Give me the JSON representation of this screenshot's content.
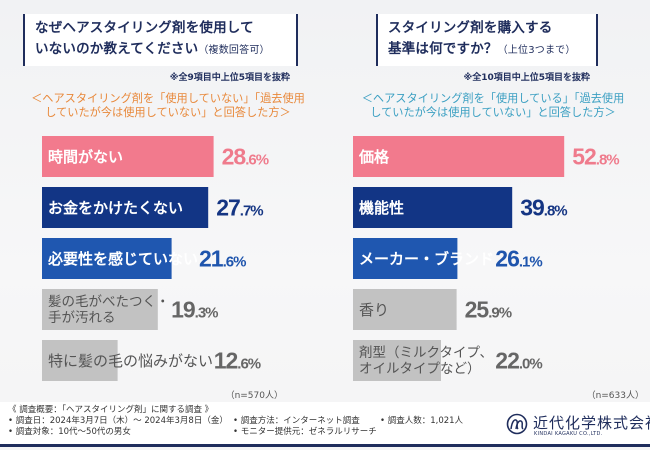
{
  "colors": {
    "pink": "#f27a8d",
    "navy": "#123585",
    "blue": "#1f57b0",
    "gray": "#c2c2c2",
    "pink_text": "#ef7b8c",
    "navy_text": "#153583",
    "blue_text": "#1f55ad",
    "gray_text": "#666666",
    "title": "#1f2d5c",
    "left_target": "#e8883a",
    "right_target": "#3a9fc2"
  },
  "left": {
    "question_line1": "なぜヘアスタイリング剤を使用して",
    "question_line2": "いないのか教えてください",
    "question_note": "（複数回答可）",
    "extract_note": "※全9項目中上位5項目を抜粋",
    "target_line1": "＜ヘアスタイリング剤を「使用していない」「過去使用",
    "target_line2": "していたが今は使用していない」と回答した方＞",
    "n_label": "（n=570人）"
  },
  "right": {
    "question_line1": "スタイリング剤を購入する",
    "question_line2": "基準は何ですか？",
    "question_note": "（上位3つまで）",
    "extract_note": "※全10項目中上位5項目を抜粋",
    "target_line1": "＜ヘアスタイリング剤を「使用している」「過去使用",
    "target_line2": "していたが今は使用していない」と回答した方＞",
    "n_label": "（n=633人）"
  },
  "chart_data": [
    {
      "type": "bar",
      "orientation": "horizontal",
      "title": "なぜヘアスタイリング剤を使用していないのか教えてください（複数回答可）",
      "unit": "%",
      "categories": [
        "時間がない",
        "お金をかけたくない",
        "必要性を感じていない",
        "髪の毛がべたつく・手が汚れる",
        "特に髪の毛の悩みがない"
      ],
      "category_lines": [
        [
          "時間がない"
        ],
        [
          "お金をかけたくない"
        ],
        [
          "必要性を感じていない"
        ],
        [
          "髪の毛がべたつく・",
          "手が汚れる"
        ],
        [
          "特に髪の毛の悩みがない"
        ]
      ],
      "values": [
        28.6,
        27.7,
        21.6,
        19.3,
        12.6
      ],
      "value_labels": [
        [
          "28",
          ".6%"
        ],
        [
          "27",
          ".7%"
        ],
        [
          "21",
          ".6%"
        ],
        [
          "19",
          ".3%"
        ],
        [
          "12",
          ".6%"
        ]
      ],
      "bar_colors": [
        "pink",
        "navy",
        "blue",
        "gray",
        "gray"
      ],
      "n": 570,
      "grid": false
    },
    {
      "type": "bar",
      "orientation": "horizontal",
      "title": "スタイリング剤を購入する基準は何ですか？（上位3つまで）",
      "unit": "%",
      "categories": [
        "価格",
        "機能性",
        "メーカー・ブランド",
        "香り",
        "剤型（ミルクタイプ、オイルタイプなど）"
      ],
      "category_lines": [
        [
          "価格"
        ],
        [
          "機能性"
        ],
        [
          "メーカー・ブランド"
        ],
        [
          "香り"
        ],
        [
          "剤型（ミルクタイプ、",
          "オイルタイプなど）"
        ]
      ],
      "values": [
        52.8,
        39.8,
        26.1,
        25.9,
        22.0
      ],
      "value_labels": [
        [
          "52",
          ".8%"
        ],
        [
          "39",
          ".8%"
        ],
        [
          "26",
          ".1%"
        ],
        [
          "25",
          ".9%"
        ],
        [
          "22",
          ".0%"
        ]
      ],
      "bar_colors": [
        "pink",
        "navy",
        "blue",
        "gray",
        "gray"
      ],
      "n": 633,
      "grid": false
    }
  ],
  "footer": {
    "overview": "《 調査概要：「ヘアスタイリング剤」に関する調査 》",
    "date": "• 調査日：2024年3月7日（木）～ 2024年3月8日（金）",
    "subjects": "• 調査対象：10代～50代の男女",
    "method": "• 調査方法：インターネット調査",
    "provider": "• モニター提供元：ゼネラルリサーチ",
    "count": "• 調査人数：1,021人"
  },
  "logo": {
    "icon": "wave-circle-logo-icon",
    "name": "近代化学株式会社",
    "sub": "KINDAI KAGAKU CO.,LTD."
  }
}
